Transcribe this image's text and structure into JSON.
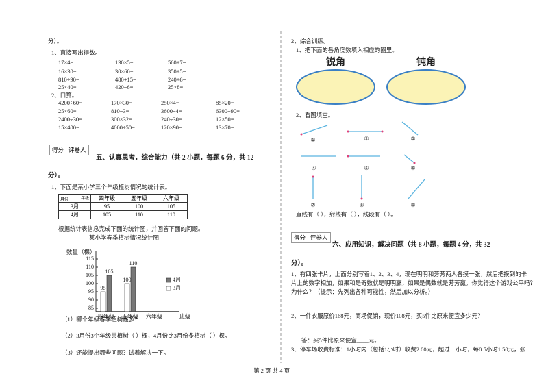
{
  "page_top": "分）。",
  "left": {
    "q1_title": "1、直接写出得数。",
    "q1_rows": [
      [
        "17×4=",
        "130×5=",
        "560÷7="
      ],
      [
        "16×30=",
        "30×60=",
        "350÷5="
      ],
      [
        "810÷90=",
        "480+15=",
        "240÷6="
      ],
      [
        "25×40=",
        "420÷6=",
        "25×8="
      ]
    ],
    "q2_title": "2、口算。",
    "q2_rows": [
      [
        "4200÷60=",
        "170×30=",
        "250×4=",
        "85×20="
      ],
      [
        "25×60=",
        "810÷3=",
        "3600÷4=",
        "6300÷90="
      ],
      [
        "2400÷30=",
        "300×32=",
        "240÷30=",
        "12×50="
      ],
      [
        "15×400=",
        "4000÷50=",
        "120×90=",
        "13×70="
      ]
    ],
    "score_box": [
      "得分",
      "评卷人"
    ],
    "section_title": "五、认真思考，综合能力（共 2 小题，每题 6 分，共 12",
    "section_tail": "分）。",
    "table_intro": "1、下面是某小学三个年级植树情况的统计表。",
    "table": {
      "corner_top": "年级",
      "corner_bottom": "月份",
      "header": [
        "四年级",
        "五年级",
        "六年级"
      ],
      "rows": [
        [
          "3月",
          "95",
          "100",
          "105"
        ],
        [
          "4月",
          "105",
          "110",
          "110"
        ]
      ]
    },
    "chart_intro": "根据统计表信息完成下面的统计图，并回答下面的问题。",
    "chart": {
      "type": "bar",
      "title": "某小学春季植树情况统计图",
      "y_label": "数量（棵）",
      "x_label": "班级",
      "categories": [
        "四年级",
        "五年级",
        "六年级"
      ],
      "series": [
        {
          "name": "4月",
          "color": "#777777",
          "values": [
            105,
            110,
            null
          ]
        },
        {
          "name": "3月",
          "color": "#ffffff",
          "values": [
            95,
            100,
            null
          ]
        }
      ],
      "ylim": [
        83,
        118
      ],
      "yticks": [
        85,
        90,
        95,
        100,
        105,
        110,
        115
      ]
    },
    "questions": [
      "（1）哪个年级春季植树最多？",
      "（2）3月份3个年级共植树（    ）棵，4月份比3月份多植树（    ）棵。",
      "（3）还能提出哪些问题？试着解决一下。"
    ]
  },
  "right": {
    "section2_title": "2、综合训练。",
    "angle_q": "1、把下面的各角度数填入相应的圈里。",
    "acute": "锐角",
    "obtuse": "钝角",
    "fill_q": "2、看图填空。",
    "figure_labels": [
      "①",
      "②",
      "③",
      "④",
      "⑤",
      "⑥",
      "⑦",
      "⑧",
      "⑨"
    ],
    "fill_answer": "直线有（      ），射线有（      ），线段有（      ）。",
    "score_box": [
      "得分",
      "评卷人"
    ],
    "section_title": "六、应用知识，解决问题（共 8 小题，每题 4 分，共 32",
    "section_tail": "分）。",
    "p1": [
      "1、有四张卡片，上面分别写着1、2、3、4，现在明明和芳芳两人各摸一张，然后把摸到的卡",
      "片上的数字相加，如果和是奇数就是明明赢，如果是偶数就是芳芳赢。你觉得这个游戏公平吗？",
      "为什么？（提示：先列出各种可能性，然后加以分析。）"
    ],
    "p2": "2、一件衣服原价168元，商场促销，现价108元，买5件比原来便宜多少元？",
    "p2_answer": "答：买5件比原来便宜____元。",
    "p3": "3、停车场收费标准：1小时内（包括1小时）收费2.00元，超过一小时，每0.5小时1.50元，张"
  },
  "footer": "第 2 页 共 4 页"
}
